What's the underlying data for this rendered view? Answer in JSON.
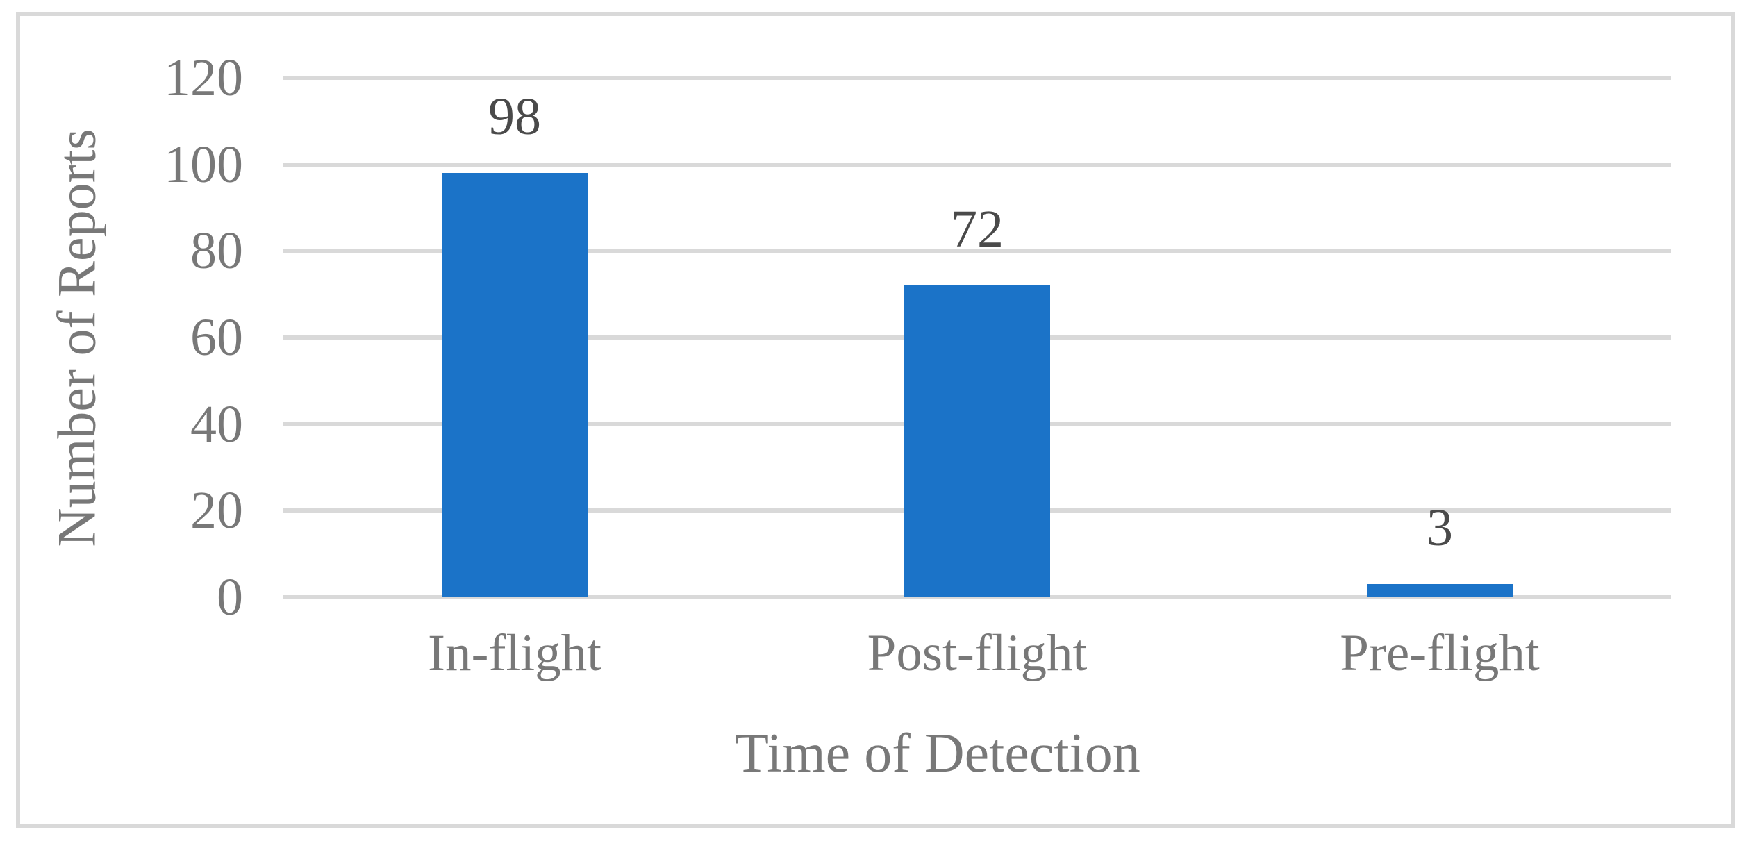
{
  "chart_data": {
    "type": "bar",
    "title": "",
    "categories": [
      "In-flight",
      "Post-flight",
      "Pre-flight"
    ],
    "values": [
      98,
      72,
      3
    ],
    "data_labels": [
      "98",
      "72",
      "3"
    ],
    "xlabel": "Time of Detection",
    "ylabel": "Number of Reports",
    "yticks": [
      120,
      100,
      80,
      60,
      40,
      20,
      0
    ],
    "ylim": [
      0,
      120
    ],
    "grid": "horizontal",
    "legend": "none",
    "colors": {
      "bar": "#1B73C8",
      "axis_text": "#787878",
      "data_label_text": "#4A4A4A",
      "gridline": "#D9D9D9",
      "frame_border": "#D9D9D9",
      "background": "#FFFFFF"
    }
  }
}
